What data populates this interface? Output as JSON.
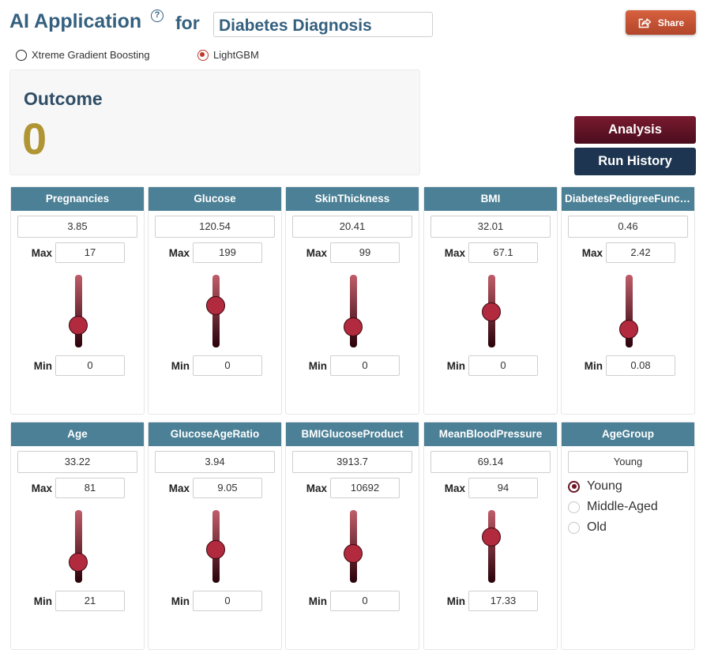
{
  "header": {
    "title": "AI Application",
    "help_icon": "question-circle-icon",
    "for_label": "for",
    "app_name": "Diabetes Diagnosis",
    "share_label": "Share",
    "share_icon": "share-icon"
  },
  "models": [
    {
      "label": "Xtreme Gradient Boosting",
      "selected": false
    },
    {
      "label": "LightGBM",
      "selected": true
    }
  ],
  "outcome": {
    "label": "Outcome",
    "value": "0"
  },
  "actions": {
    "analysis_label": "Analysis",
    "history_label": "Run History"
  },
  "labels": {
    "max": "Max",
    "min": "Min"
  },
  "features": [
    {
      "name": "Pregnancies",
      "value": "3.85",
      "max": "17",
      "min": "0",
      "level": 0.23
    },
    {
      "name": "Glucose",
      "value": "120.54",
      "max": "199",
      "min": "0",
      "level": 0.61
    },
    {
      "name": "SkinThickness",
      "value": "20.41",
      "max": "99",
      "min": "0",
      "level": 0.21
    },
    {
      "name": "BMI",
      "value": "32.01",
      "max": "67.1",
      "min": "0",
      "level": 0.48
    },
    {
      "name": "DiabetesPedigreeFunction",
      "value": "0.46",
      "max": "2.42",
      "min": "0.08",
      "level": 0.16
    },
    {
      "name": "Age",
      "value": "33.22",
      "max": "81",
      "min": "21",
      "level": 0.2
    },
    {
      "name": "GlucoseAgeRatio",
      "value": "3.94",
      "max": "9.05",
      "min": "0",
      "level": 0.44
    },
    {
      "name": "BMIGlucoseProduct",
      "value": "3913.7",
      "max": "10692",
      "min": "0",
      "level": 0.37
    },
    {
      "name": "MeanBloodPressure",
      "value": "69.14",
      "max": "94",
      "min": "17.33",
      "level": 0.68
    }
  ],
  "age_group": {
    "name": "AgeGroup",
    "value": "Young",
    "options": [
      {
        "label": "Young",
        "selected": true
      },
      {
        "label": "Middle-Aged",
        "selected": false
      },
      {
        "label": "Old",
        "selected": false
      }
    ]
  }
}
